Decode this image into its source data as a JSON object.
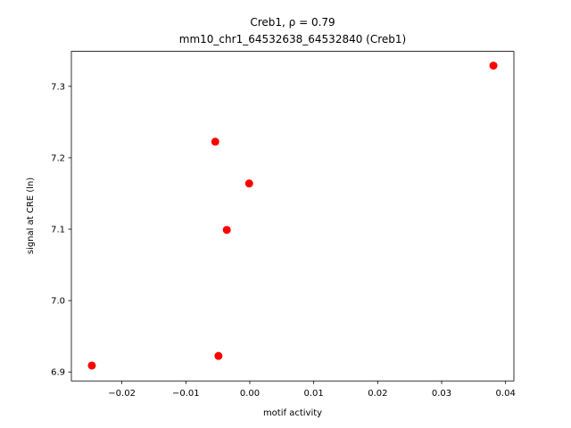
{
  "chart_data": {
    "type": "scatter",
    "title": "Creb1, ρ = 0.79",
    "subtitle": "mm10_chr1_64532638_64532840 (Creb1)",
    "x_label": "motif activity",
    "y_label": "signal at CRE (ln)",
    "color": "#ff0000",
    "x": [
      0.0381,
      -0.0054,
      -0.0001,
      -0.0036,
      -0.0247,
      -0.0049
    ],
    "values": [
      7.329,
      7.2225,
      7.164,
      7.099,
      6.909,
      6.9225
    ],
    "xlim": [
      -0.0279,
      0.0413
    ],
    "ylim": [
      6.8875,
      7.349
    ],
    "xticks": [
      {
        "value": -0.02,
        "label": "−0.02"
      },
      {
        "value": -0.01,
        "label": "−0.01"
      },
      {
        "value": 0,
        "label": "0.00"
      },
      {
        "value": 0.01,
        "label": "0.01"
      },
      {
        "value": 0.02,
        "label": "0.02"
      },
      {
        "value": 0.03,
        "label": "0.03"
      },
      {
        "value": 0.04,
        "label": "0.04"
      }
    ],
    "yticks": [
      6.9,
      {
        "value": 7,
        "label": "7.0"
      },
      7.1,
      7.2,
      7.3
    ],
    "grid": false
  }
}
